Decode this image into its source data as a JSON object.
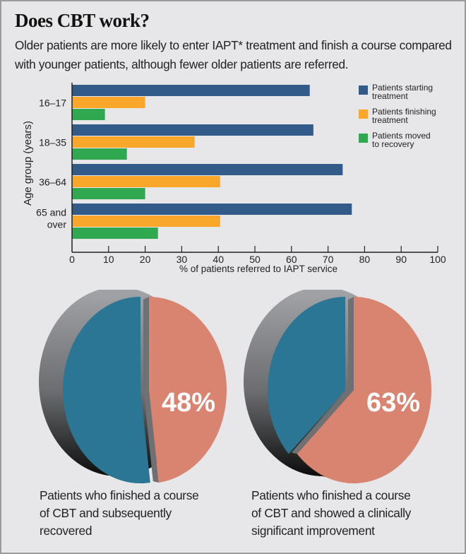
{
  "header": {
    "title": "Does CBT work?",
    "subtitle": "Older patients are more likely to enter IAPT* treatment and finish a course compared with younger patients, although fewer older patients are referred."
  },
  "chart_data": [
    {
      "type": "bar",
      "orientation": "horizontal",
      "title": "",
      "xlabel": "% of patients referred to IAPT service",
      "ylabel": "Age group (years)",
      "xlim": [
        0,
        100
      ],
      "xticks": [
        "0",
        "10",
        "20",
        "30",
        "40",
        "50",
        "60",
        "70",
        "80",
        "90",
        "100"
      ],
      "categories": [
        "16–17",
        "18–35",
        "36–64",
        "65 and over"
      ],
      "category_lines": [
        [
          "16–17"
        ],
        [
          "18–35"
        ],
        [
          "36–64"
        ],
        [
          "65 and",
          "over"
        ]
      ],
      "legend_position": "top-right",
      "series": [
        {
          "name": "Patients starting treatment",
          "legend_lines": [
            "Patients starting",
            "treatment"
          ],
          "color": "#325b8a",
          "values": [
            65,
            66,
            74,
            76.5
          ]
        },
        {
          "name": "Patients finishing treatment",
          "legend_lines": [
            "Patients finishing",
            "treatment"
          ],
          "color": "#f9a72b",
          "values": [
            20,
            33.5,
            40.5,
            40.5
          ]
        },
        {
          "name": "Patients moved to recovery",
          "legend_lines": [
            "Patients moved",
            "to recovery"
          ],
          "color": "#2fa84f",
          "values": [
            9,
            15,
            20,
            23.5
          ]
        }
      ]
    },
    {
      "type": "pie",
      "label": "48%",
      "highlight_value": 48,
      "values": [
        48,
        52
      ],
      "colors": [
        "#d98470",
        "#2b7595"
      ],
      "caption": "Patients who finished a course of CBT and subsequently recovered",
      "caption_lines": [
        "Patients who finished a course",
        "of CBT and subsequently",
        "recovered"
      ]
    },
    {
      "type": "pie",
      "label": "63%",
      "highlight_value": 63,
      "values": [
        63,
        37
      ],
      "colors": [
        "#d98470",
        "#2b7595"
      ],
      "caption": "Patients who finished a course of CBT and showed a clinically significant improvement",
      "caption_lines": [
        "Patients who finished a course",
        "of CBT and showed a clinically",
        "significant improvement"
      ]
    }
  ]
}
